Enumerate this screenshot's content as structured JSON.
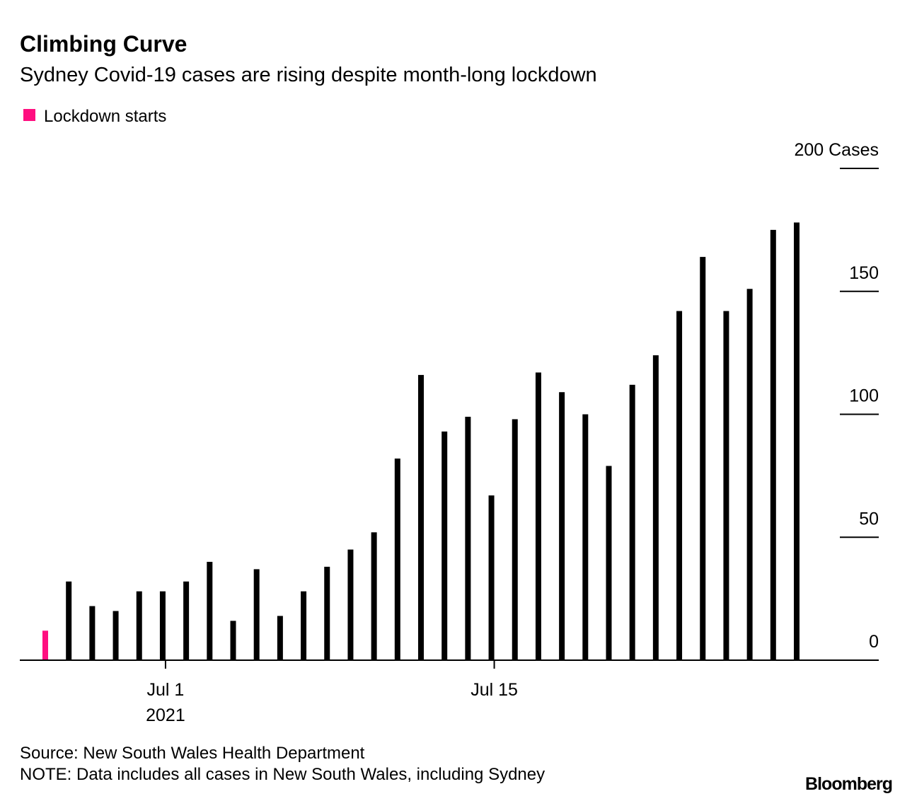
{
  "chart_data": {
    "type": "bar",
    "title": "Climbing Curve",
    "subtitle": "Sydney Covid-19 cases are rising despite month-long lockdown",
    "x": [
      "2021-06-26",
      "2021-06-27",
      "2021-06-28",
      "2021-06-29",
      "2021-06-30",
      "2021-07-01",
      "2021-07-02",
      "2021-07-03",
      "2021-07-04",
      "2021-07-05",
      "2021-07-06",
      "2021-07-07",
      "2021-07-08",
      "2021-07-09",
      "2021-07-10",
      "2021-07-11",
      "2021-07-12",
      "2021-07-13",
      "2021-07-14",
      "2021-07-15",
      "2021-07-16",
      "2021-07-17",
      "2021-07-18",
      "2021-07-19",
      "2021-07-20",
      "2021-07-21",
      "2021-07-22",
      "2021-07-23",
      "2021-07-24",
      "2021-07-25",
      "2021-07-26",
      "2021-07-27",
      "2021-07-28"
    ],
    "values": [
      12,
      32,
      22,
      20,
      28,
      28,
      32,
      40,
      16,
      37,
      18,
      28,
      38,
      45,
      52,
      82,
      116,
      93,
      99,
      67,
      98,
      117,
      109,
      100,
      79,
      112,
      124,
      142,
      164,
      142,
      151,
      175,
      178
    ],
    "color": "#000000",
    "highlight": {
      "index": 0,
      "color": "#ff0f80",
      "label": "Lockdown starts"
    },
    "ylim": [
      0,
      200
    ],
    "yticks": [
      0,
      50,
      100,
      150,
      {
        "value": 200,
        "label": "200 Cases"
      }
    ],
    "xticks": [
      {
        "value": "2021-07-01",
        "label": "Jul 1"
      },
      {
        "value": "2021-07-15",
        "label": "Jul 15"
      }
    ],
    "year_label": "2021",
    "source": "Source: New South Wales Health Department",
    "note": "NOTE: Data includes all cases in New South Wales, including Sydney",
    "brand": "Bloomberg"
  }
}
